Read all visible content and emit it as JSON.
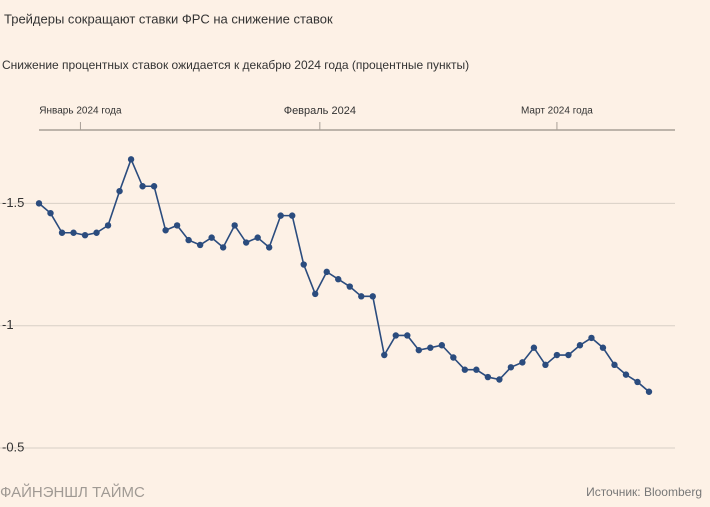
{
  "chart_data": {
    "type": "line",
    "title": "Трейдеры сокращают ставки ФРС на снижение ставок",
    "subtitle": "Снижение процентных ставок ожидается к декабрю 2024 года (процентные пункты)",
    "categories": [
      null,
      null,
      null,
      null,
      null,
      null,
      null,
      null,
      null,
      null,
      null,
      null,
      null,
      null,
      null,
      null,
      null,
      null,
      null,
      null,
      null,
      null,
      null,
      null,
      null,
      null,
      null,
      null,
      null,
      null,
      null,
      null,
      null,
      null,
      null,
      null,
      null,
      null,
      null,
      null,
      null,
      null,
      null,
      null,
      null,
      null,
      null,
      null,
      null,
      null,
      null,
      null,
      null,
      null
    ],
    "series": [
      {
        "name": "Снижение ставок",
        "color": "#2b4c7e",
        "values": [
          -1.5,
          -1.46,
          -1.38,
          -1.38,
          -1.37,
          -1.38,
          -1.41,
          -1.55,
          -1.68,
          -1.57,
          -1.57,
          -1.39,
          -1.41,
          -1.35,
          -1.33,
          -1.36,
          -1.32,
          -1.41,
          -1.34,
          -1.36,
          -1.32,
          -1.45,
          -1.45,
          -1.25,
          -1.13,
          -1.22,
          -1.19,
          -1.16,
          -1.12,
          -1.12,
          -0.88,
          -0.96,
          -0.96,
          -0.9,
          -0.91,
          -0.92,
          -0.87,
          -0.82,
          -0.82,
          -0.79,
          -0.78,
          -0.83,
          -0.85,
          -0.91,
          -0.84,
          -0.88,
          -0.88,
          -0.92,
          -0.95,
          -0.91,
          -0.84,
          -0.8,
          -0.77,
          -0.73
        ]
      }
    ],
    "xticks": [
      {
        "value": 3.6,
        "label": "Январь 2024 года"
      },
      {
        "value": 24.4,
        "label": "Февраль 2024"
      },
      {
        "value": 45,
        "label": "Март 2024 года"
      }
    ],
    "ylim": [
      -0.5,
      -1.8
    ],
    "yticks": [
      -1.5,
      -1,
      -0.5
    ],
    "grid": true,
    "brand": "ФАЙНЭНШЛ ТАЙМС",
    "source": "Источник: Bloomberg"
  }
}
